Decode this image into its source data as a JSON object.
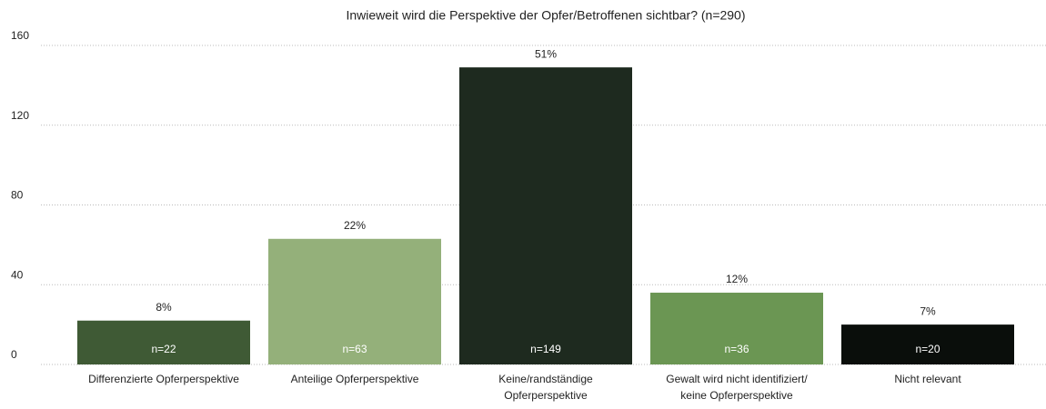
{
  "chart_data": {
    "type": "bar",
    "title": "Inwieweit wird die Perspektive der Opfer/Betroffenen sichtbar? (n=290)",
    "categories": [
      [
        "Differenzierte Opferperspektive"
      ],
      [
        "Anteilige Opferperspektive"
      ],
      [
        "Keine/randständige",
        "Opferperspektive"
      ],
      [
        "Gewalt wird nicht identifiziert/",
        "keine Opferperspektive"
      ],
      [
        "Nicht relevant"
      ]
    ],
    "values": [
      22,
      63,
      149,
      36,
      20
    ],
    "value_labels": [
      "n=22",
      "n=63",
      "n=149",
      "n=36",
      "n=20"
    ],
    "percent_labels": [
      "8%",
      "22%",
      "51%",
      "12%",
      "7%"
    ],
    "colors": [
      "#3f5a35",
      "#94b07a",
      "#1e2a1f",
      "#6b9653",
      "#0a0e0b"
    ],
    "ylim": [
      0,
      160
    ],
    "yticks": [
      0,
      40,
      80,
      120,
      160
    ],
    "grid": true
  }
}
